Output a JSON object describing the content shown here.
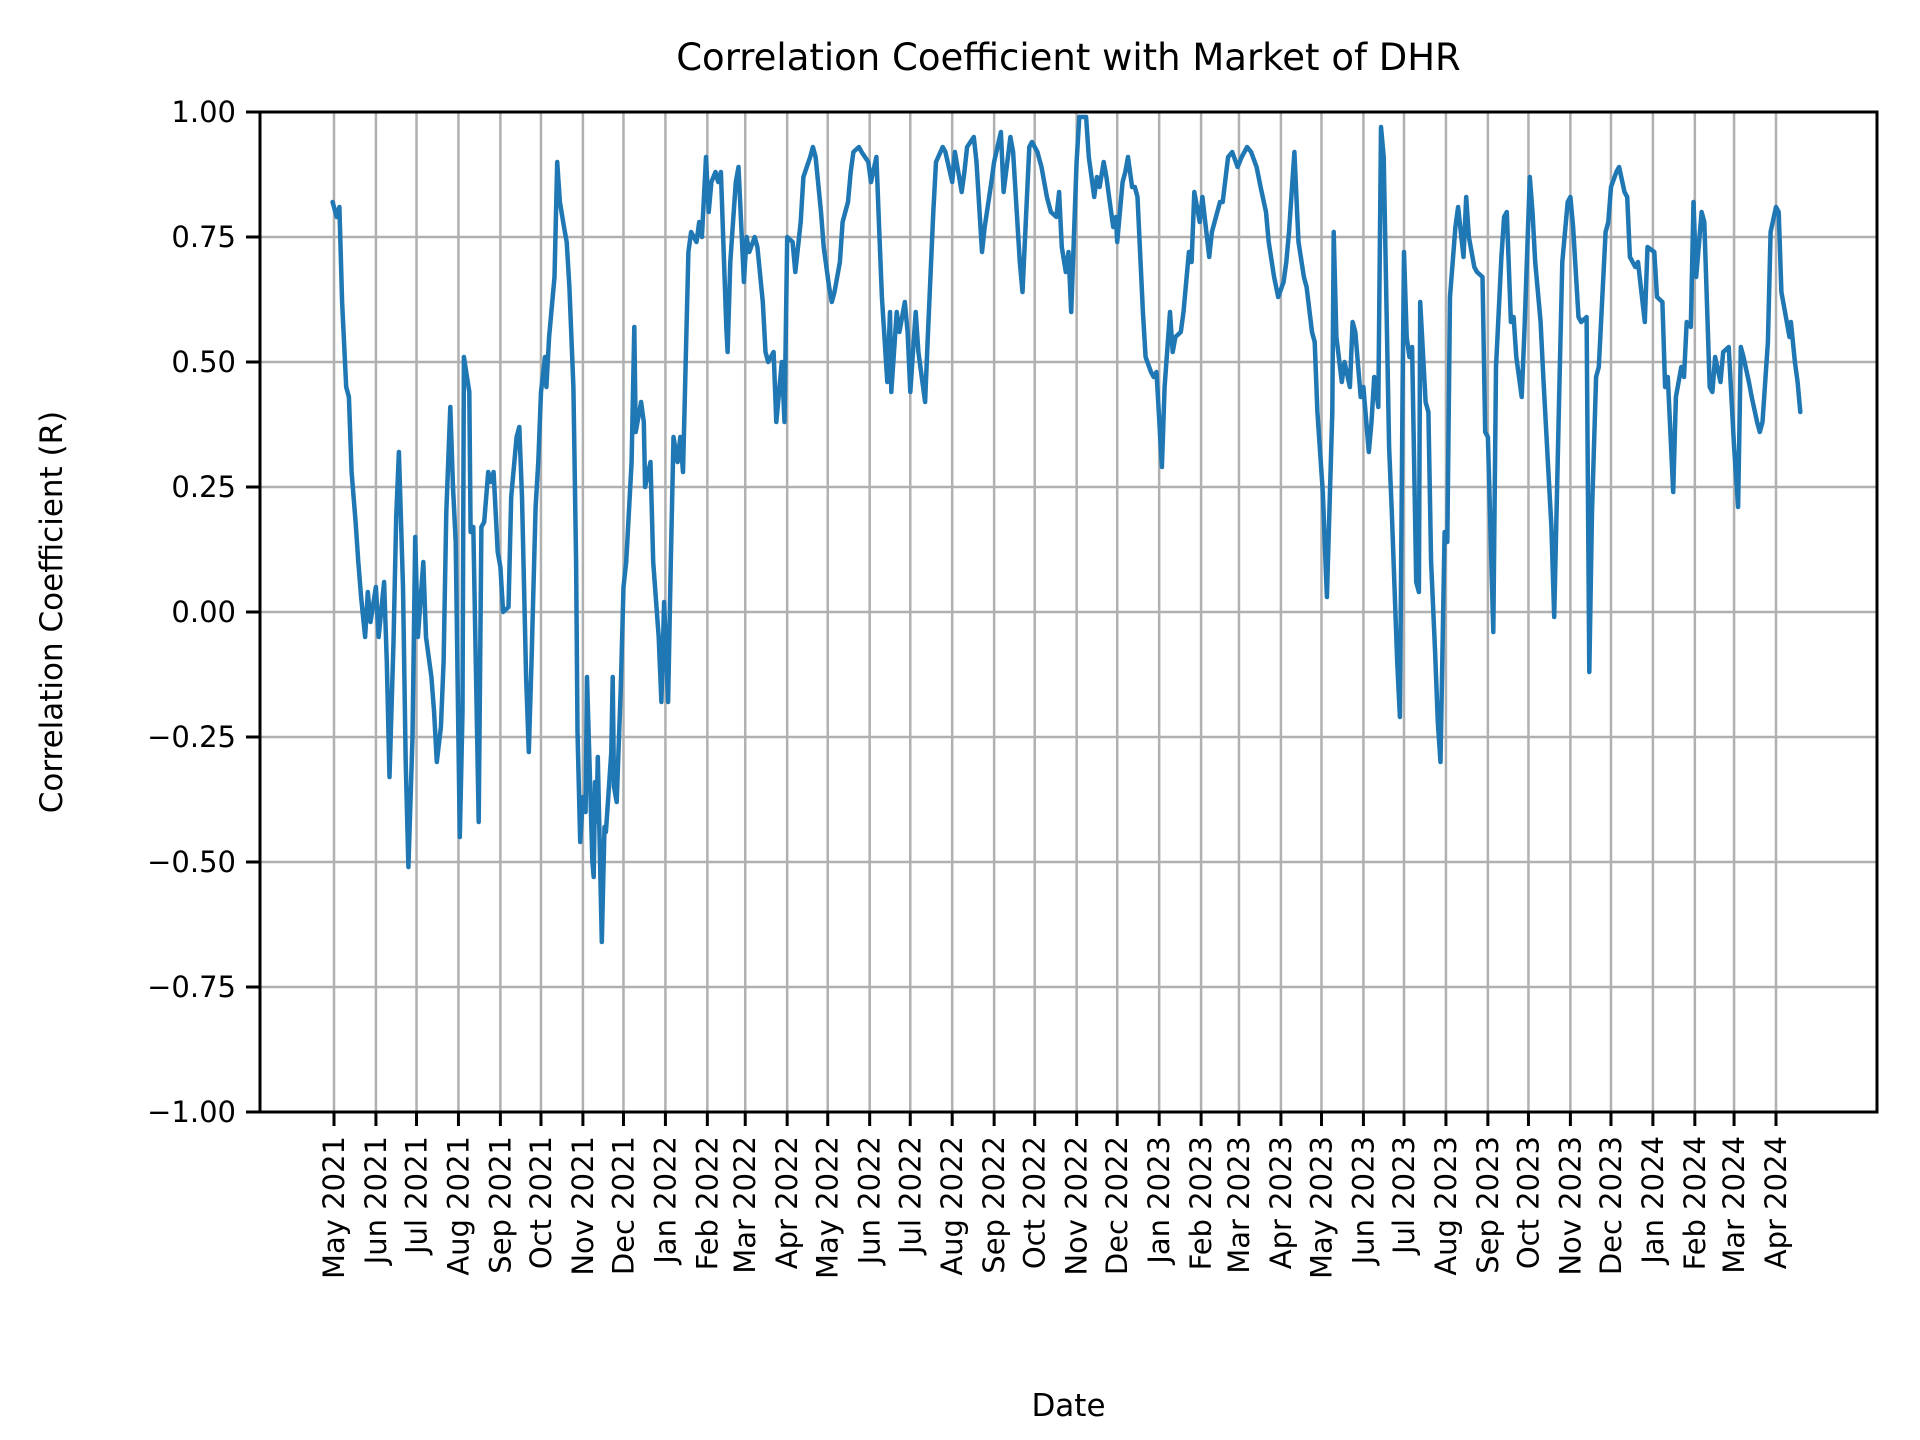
{
  "chart_data": {
    "type": "line",
    "title": "Correlation Coefficient with Market of DHR",
    "xlabel": "Date",
    "ylabel": "Correlation Coefficient (R)",
    "ylim": [
      -1.0,
      1.0
    ],
    "yticks": [
      1.0,
      0.75,
      0.5,
      0.25,
      0.0,
      -0.25,
      -0.5,
      -0.75,
      -1.0
    ],
    "ytick_labels": [
      "1.00",
      "0.75",
      "0.50",
      "0.25",
      "0.00",
      "−0.25",
      "−0.50",
      "−0.75",
      "−1.00"
    ],
    "xtick_labels": [
      "May 2021",
      "Jun 2021",
      "Jul 2021",
      "Aug 2021",
      "Sep 2021",
      "Oct 2021",
      "Nov 2021",
      "Dec 2021",
      "Jan 2022",
      "Feb 2022",
      "Mar 2022",
      "Apr 2022",
      "May 2022",
      "Jun 2022",
      "Jul 2022",
      "Aug 2022",
      "Sep 2022",
      "Oct 2022",
      "Nov 2022",
      "Dec 2022",
      "Jan 2023",
      "Feb 2023",
      "Mar 2023",
      "Apr 2023",
      "May 2023",
      "Jun 2023",
      "Jul 2023",
      "Aug 2023",
      "Sep 2023",
      "Oct 2023",
      "Nov 2023",
      "Dec 2023",
      "Jan 2024",
      "Feb 2024",
      "Mar 2024",
      "Apr 2024"
    ],
    "grid": true,
    "legend_position": "none",
    "line_color": "#1f77b4",
    "grid_color": "#b0b0b0",
    "spine_color": "#000000",
    "series": [
      {
        "x": [
          "2021-04-30",
          "2021-05-03",
          "2021-05-05",
          "2021-05-07",
          "2021-05-10",
          "2021-05-12",
          "2021-05-14",
          "2021-05-17",
          "2021-05-19",
          "2021-05-21",
          "2021-05-24",
          "2021-05-26",
          "2021-05-28",
          "2021-06-01",
          "2021-06-03",
          "2021-06-07",
          "2021-06-09",
          "2021-06-11",
          "2021-06-14",
          "2021-06-16",
          "2021-06-18",
          "2021-06-21",
          "2021-06-23",
          "2021-06-25",
          "2021-06-28",
          "2021-06-30",
          "2021-07-02",
          "2021-07-06",
          "2021-07-08",
          "2021-07-12",
          "2021-07-14",
          "2021-07-16",
          "2021-07-19",
          "2021-07-21",
          "2021-07-23",
          "2021-07-26",
          "2021-07-28",
          "2021-07-30",
          "2021-08-02",
          "2021-08-04",
          "2021-08-05",
          "2021-08-09",
          "2021-08-10",
          "2021-08-12",
          "2021-08-16",
          "2021-08-18",
          "2021-08-20",
          "2021-08-23",
          "2021-08-25",
          "2021-08-27",
          "2021-08-30",
          "2021-09-01",
          "2021-09-03",
          "2021-09-07",
          "2021-09-09",
          "2021-09-13",
          "2021-09-15",
          "2021-09-17",
          "2021-09-20",
          "2021-09-22",
          "2021-09-24",
          "2021-09-27",
          "2021-09-29",
          "2021-10-01",
          "2021-10-04",
          "2021-10-05",
          "2021-10-07",
          "2021-10-11",
          "2021-10-13",
          "2021-10-15",
          "2021-10-18",
          "2021-10-20",
          "2021-10-22",
          "2021-10-25",
          "2021-10-27",
          "2021-10-28",
          "2021-10-30",
          "2021-11-01",
          "2021-11-03",
          "2021-11-04",
          "2021-11-08",
          "2021-11-09",
          "2021-11-10",
          "2021-11-11",
          "2021-11-12",
          "2021-11-15",
          "2021-11-17",
          "2021-11-18",
          "2021-11-22",
          "2021-11-23",
          "2021-11-24",
          "2021-11-26",
          "2021-11-29",
          "2021-12-01",
          "2021-12-03",
          "2021-12-07",
          "2021-12-09",
          "2021-12-10",
          "2021-12-14",
          "2021-12-16",
          "2021-12-17",
          "2021-12-21",
          "2021-12-23",
          "2021-12-27",
          "2021-12-29",
          "2021-12-31",
          "2022-01-03",
          "2022-01-05",
          "2022-01-07",
          "2022-01-10",
          "2022-01-12",
          "2022-01-14",
          "2022-01-18",
          "2022-01-20",
          "2022-01-24",
          "2022-01-26",
          "2022-01-28",
          "2022-01-31",
          "2022-02-02",
          "2022-02-04",
          "2022-02-07",
          "2022-02-09",
          "2022-02-11",
          "2022-02-15",
          "2022-02-16",
          "2022-02-18",
          "2022-02-22",
          "2022-02-24",
          "2022-02-28",
          "2022-03-02",
          "2022-03-04",
          "2022-03-08",
          "2022-03-10",
          "2022-03-14",
          "2022-03-16",
          "2022-03-18",
          "2022-03-22",
          "2022-03-24",
          "2022-03-28",
          "2022-03-30",
          "2022-04-01",
          "2022-04-05",
          "2022-04-07",
          "2022-04-11",
          "2022-04-13",
          "2022-04-18",
          "2022-04-20",
          "2022-04-22",
          "2022-04-26",
          "2022-04-28",
          "2022-05-02",
          "2022-05-04",
          "2022-05-06",
          "2022-05-10",
          "2022-05-12",
          "2022-05-16",
          "2022-05-18",
          "2022-05-20",
          "2022-05-24",
          "2022-05-26",
          "2022-05-31",
          "2022-06-02",
          "2022-06-06",
          "2022-06-08",
          "2022-06-10",
          "2022-06-14",
          "2022-06-16",
          "2022-06-17",
          "2022-06-21",
          "2022-06-23",
          "2022-06-27",
          "2022-06-29",
          "2022-07-01",
          "2022-07-05",
          "2022-07-07",
          "2022-07-12",
          "2022-07-14",
          "2022-07-18",
          "2022-07-20",
          "2022-07-25",
          "2022-07-27",
          "2022-08-01",
          "2022-08-03",
          "2022-08-08",
          "2022-08-10",
          "2022-08-12",
          "2022-08-17",
          "2022-08-19",
          "2022-08-23",
          "2022-08-25",
          "2022-08-30",
          "2022-09-01",
          "2022-09-06",
          "2022-09-08",
          "2022-09-13",
          "2022-09-15",
          "2022-09-20",
          "2022-09-22",
          "2022-09-27",
          "2022-09-29",
          "2022-10-03",
          "2022-10-06",
          "2022-10-10",
          "2022-10-13",
          "2022-10-17",
          "2022-10-19",
          "2022-10-21",
          "2022-10-24",
          "2022-10-26",
          "2022-10-28",
          "2022-11-01",
          "2022-11-03",
          "2022-11-08",
          "2022-11-10",
          "2022-11-14",
          "2022-11-16",
          "2022-11-18",
          "2022-11-21",
          "2022-11-23",
          "2022-11-25",
          "2022-11-28",
          "2022-11-30",
          "2022-12-01",
          "2022-12-05",
          "2022-12-07",
          "2022-12-09",
          "2022-12-12",
          "2022-12-14",
          "2022-12-16",
          "2022-12-20",
          "2022-12-22",
          "2022-12-26",
          "2022-12-28",
          "2022-12-30",
          "2023-01-03",
          "2023-01-05",
          "2023-01-09",
          "2023-01-11",
          "2023-01-13",
          "2023-01-17",
          "2023-01-19",
          "2023-01-23",
          "2023-01-25",
          "2023-01-27",
          "2023-01-31",
          "2023-02-02",
          "2023-02-07",
          "2023-02-09",
          "2023-02-13",
          "2023-02-15",
          "2023-02-17",
          "2023-02-21",
          "2023-02-24",
          "2023-02-28",
          "2023-03-03",
          "2023-03-07",
          "2023-03-10",
          "2023-03-14",
          "2023-03-17",
          "2023-03-21",
          "2023-03-23",
          "2023-03-27",
          "2023-03-30",
          "2023-04-03",
          "2023-04-05",
          "2023-04-07",
          "2023-04-11",
          "2023-04-13",
          "2023-04-14",
          "2023-04-18",
          "2023-04-20",
          "2023-04-24",
          "2023-04-26",
          "2023-04-28",
          "2023-05-02",
          "2023-05-04",
          "2023-05-05",
          "2023-05-09",
          "2023-05-10",
          "2023-05-12",
          "2023-05-16",
          "2023-05-18",
          "2023-05-22",
          "2023-05-24",
          "2023-05-26",
          "2023-05-30",
          "2023-06-01",
          "2023-06-05",
          "2023-06-07",
          "2023-06-09",
          "2023-06-12",
          "2023-06-14",
          "2023-06-16",
          "2023-06-20",
          "2023-06-22",
          "2023-06-26",
          "2023-06-28",
          "2023-06-30",
          "2023-07-01",
          "2023-07-03",
          "2023-07-05",
          "2023-07-07",
          "2023-07-10",
          "2023-07-12",
          "2023-07-13",
          "2023-07-17",
          "2023-07-19",
          "2023-07-21",
          "2023-07-24",
          "2023-07-26",
          "2023-07-28",
          "2023-07-31",
          "2023-08-02",
          "2023-08-04",
          "2023-08-08",
          "2023-08-10",
          "2023-08-14",
          "2023-08-16",
          "2023-08-18",
          "2023-08-22",
          "2023-08-24",
          "2023-08-28",
          "2023-08-30",
          "2023-09-01",
          "2023-09-05",
          "2023-09-07",
          "2023-09-11",
          "2023-09-13",
          "2023-09-15",
          "2023-09-18",
          "2023-09-20",
          "2023-09-22",
          "2023-09-26",
          "2023-09-28",
          "2023-10-02",
          "2023-10-04",
          "2023-10-06",
          "2023-10-10",
          "2023-10-12",
          "2023-10-16",
          "2023-10-18",
          "2023-10-20",
          "2023-10-24",
          "2023-10-26",
          "2023-10-30",
          "2023-11-01",
          "2023-11-03",
          "2023-11-07",
          "2023-11-09",
          "2023-11-13",
          "2023-11-15",
          "2023-11-17",
          "2023-11-20",
          "2023-11-22",
          "2023-11-27",
          "2023-11-29",
          "2023-12-01",
          "2023-12-05",
          "2023-12-07",
          "2023-12-11",
          "2023-12-13",
          "2023-12-15",
          "2023-12-19",
          "2023-12-21",
          "2023-12-26",
          "2023-12-28",
          "2024-01-02",
          "2024-01-04",
          "2024-01-08",
          "2024-01-10",
          "2024-01-12",
          "2024-01-16",
          "2024-01-18",
          "2024-01-22",
          "2024-01-24",
          "2024-01-26",
          "2024-01-29",
          "2024-01-31",
          "2024-02-02",
          "2024-02-06",
          "2024-02-08",
          "2024-02-12",
          "2024-02-14",
          "2024-02-16",
          "2024-02-20",
          "2024-02-22",
          "2024-02-26",
          "2024-02-28",
          "2024-03-01",
          "2024-03-04",
          "2024-03-06",
          "2024-03-08",
          "2024-03-12",
          "2024-03-14",
          "2024-03-18",
          "2024-03-20",
          "2024-03-22",
          "2024-03-26",
          "2024-03-28",
          "2024-04-01",
          "2024-04-03",
          "2024-04-05",
          "2024-04-09",
          "2024-04-11",
          "2024-04-12",
          "2024-04-15",
          "2024-04-17",
          "2024-04-19"
        ],
        "y": [
          0.82,
          0.79,
          0.81,
          0.62,
          0.45,
          0.43,
          0.28,
          0.18,
          0.1,
          0.03,
          -0.05,
          0.04,
          -0.02,
          0.05,
          -0.05,
          0.06,
          -0.1,
          -0.33,
          -0.06,
          0.19,
          0.32,
          0.05,
          -0.3,
          -0.51,
          -0.25,
          0.15,
          -0.05,
          0.1,
          -0.05,
          -0.13,
          -0.2,
          -0.3,
          -0.23,
          -0.1,
          0.2,
          0.41,
          0.25,
          0.14,
          -0.45,
          -0.2,
          0.51,
          0.44,
          0.16,
          0.17,
          -0.42,
          0.17,
          0.18,
          0.28,
          0.26,
          0.28,
          0.12,
          0.09,
          0.0,
          0.01,
          0.23,
          0.35,
          0.37,
          0.23,
          -0.13,
          -0.28,
          -0.1,
          0.21,
          0.3,
          0.44,
          0.51,
          0.45,
          0.55,
          0.67,
          0.9,
          0.82,
          0.77,
          0.74,
          0.65,
          0.45,
          0.1,
          -0.24,
          -0.46,
          -0.37,
          -0.4,
          -0.13,
          -0.5,
          -0.53,
          -0.34,
          -0.42,
          -0.29,
          -0.66,
          -0.43,
          -0.44,
          -0.28,
          -0.13,
          -0.35,
          -0.38,
          -0.15,
          0.05,
          0.1,
          0.3,
          0.57,
          0.36,
          0.42,
          0.38,
          0.25,
          0.3,
          0.1,
          -0.05,
          -0.18,
          0.02,
          -0.18,
          0.1,
          0.35,
          0.3,
          0.35,
          0.28,
          0.72,
          0.76,
          0.74,
          0.78,
          0.75,
          0.91,
          0.8,
          0.86,
          0.88,
          0.86,
          0.88,
          0.57,
          0.52,
          0.7,
          0.86,
          0.89,
          0.66,
          0.75,
          0.72,
          0.75,
          0.73,
          0.62,
          0.52,
          0.5,
          0.52,
          0.38,
          0.5,
          0.38,
          0.75,
          0.74,
          0.68,
          0.78,
          0.87,
          0.91,
          0.93,
          0.91,
          0.8,
          0.73,
          0.65,
          0.62,
          0.64,
          0.7,
          0.78,
          0.82,
          0.88,
          0.92,
          0.93,
          0.92,
          0.9,
          0.86,
          0.91,
          0.77,
          0.63,
          0.46,
          0.6,
          0.44,
          0.6,
          0.56,
          0.62,
          0.56,
          0.44,
          0.6,
          0.52,
          0.42,
          0.55,
          0.8,
          0.9,
          0.93,
          0.92,
          0.86,
          0.92,
          0.84,
          0.88,
          0.93,
          0.95,
          0.9,
          0.72,
          0.77,
          0.86,
          0.9,
          0.96,
          0.84,
          0.95,
          0.92,
          0.7,
          0.64,
          0.93,
          0.94,
          0.92,
          0.89,
          0.83,
          0.8,
          0.79,
          0.84,
          0.73,
          0.68,
          0.72,
          0.6,
          0.9,
          0.99,
          0.99,
          0.91,
          0.83,
          0.87,
          0.85,
          0.9,
          0.87,
          0.83,
          0.77,
          0.79,
          0.74,
          0.86,
          0.88,
          0.91,
          0.85,
          0.85,
          0.83,
          0.6,
          0.51,
          0.48,
          0.47,
          0.48,
          0.29,
          0.45,
          0.6,
          0.52,
          0.55,
          0.56,
          0.6,
          0.72,
          0.7,
          0.84,
          0.78,
          0.83,
          0.71,
          0.76,
          0.8,
          0.82,
          0.82,
          0.91,
          0.92,
          0.89,
          0.91,
          0.93,
          0.92,
          0.89,
          0.85,
          0.8,
          0.74,
          0.67,
          0.63,
          0.66,
          0.7,
          0.76,
          0.92,
          0.8,
          0.74,
          0.67,
          0.65,
          0.56,
          0.54,
          0.4,
          0.24,
          0.1,
          0.03,
          0.4,
          0.76,
          0.55,
          0.46,
          0.5,
          0.45,
          0.58,
          0.56,
          0.43,
          0.45,
          0.32,
          0.38,
          0.47,
          0.41,
          0.97,
          0.91,
          0.33,
          0.2,
          -0.1,
          -0.21,
          0.45,
          0.72,
          0.55,
          0.51,
          0.53,
          0.06,
          0.04,
          0.62,
          0.42,
          0.4,
          0.1,
          -0.08,
          -0.22,
          -0.3,
          0.16,
          0.14,
          0.63,
          0.77,
          0.81,
          0.71,
          0.83,
          0.75,
          0.69,
          0.68,
          0.67,
          0.36,
          0.35,
          -0.04,
          0.49,
          0.71,
          0.79,
          0.8,
          0.58,
          0.59,
          0.51,
          0.43,
          0.56,
          0.87,
          0.8,
          0.7,
          0.58,
          0.47,
          0.27,
          0.17,
          -0.01,
          0.47,
          0.7,
          0.82,
          0.83,
          0.77,
          0.59,
          0.58,
          0.59,
          -0.12,
          0.2,
          0.47,
          0.49,
          0.76,
          0.78,
          0.85,
          0.88,
          0.89,
          0.84,
          0.83,
          0.71,
          0.69,
          0.7,
          0.58,
          0.73,
          0.72,
          0.63,
          0.62,
          0.45,
          0.47,
          0.24,
          0.43,
          0.49,
          0.47,
          0.58,
          0.57,
          0.82,
          0.67,
          0.8,
          0.78,
          0.45,
          0.44,
          0.51,
          0.46,
          0.52,
          0.53,
          0.43,
          0.33,
          0.21,
          0.53,
          0.51,
          0.46,
          0.43,
          0.38,
          0.36,
          0.38,
          0.54,
          0.76,
          0.81,
          0.8,
          0.64,
          0.58,
          0.55,
          0.58,
          0.5,
          0.46,
          0.4
        ]
      }
    ]
  }
}
